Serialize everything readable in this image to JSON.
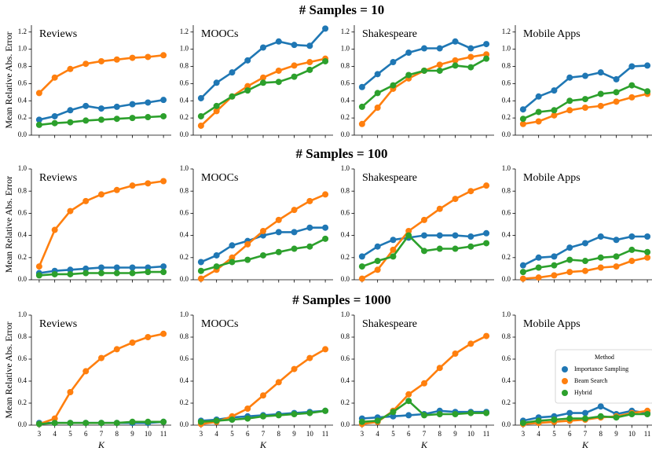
{
  "figure": {
    "row_titles": [
      "# Samples = 10",
      "# Samples = 100",
      "# Samples = 1000"
    ],
    "ylabel": "Mean Relative Abs. Error",
    "xlabel": "K"
  },
  "chart_data": [
    {
      "type": "line",
      "title": "Reviews",
      "x": [
        3,
        4,
        5,
        6,
        7,
        8,
        9,
        10,
        11
      ],
      "xlim": [
        2.5,
        11.5
      ],
      "xticks": [
        3,
        4,
        5,
        6,
        7,
        8,
        9,
        10,
        11
      ],
      "ylim": [
        0,
        1.28
      ],
      "yticks": [
        {
          "value": 0,
          "label": "0.0"
        },
        0.2,
        0.4,
        0.6,
        0.8,
        {
          "value": 1,
          "label": "1.0"
        },
        1.2
      ],
      "series": [
        {
          "name": "Importance Sampling",
          "color": "#1f77b4",
          "values": [
            0.18,
            0.22,
            0.29,
            0.34,
            0.31,
            0.33,
            0.36,
            0.38,
            0.41
          ]
        },
        {
          "name": "Beam Search",
          "color": "#ff7f0e",
          "values": [
            0.49,
            0.67,
            0.77,
            0.83,
            0.86,
            0.88,
            0.9,
            0.91,
            0.93
          ]
        },
        {
          "name": "Hybrid",
          "color": "#2ca02c",
          "values": [
            0.12,
            0.14,
            0.15,
            0.17,
            0.18,
            0.19,
            0.2,
            0.21,
            0.22
          ]
        }
      ]
    },
    {
      "type": "line",
      "title": "MOOCs",
      "x": [
        3,
        4,
        5,
        6,
        7,
        8,
        9,
        10,
        11
      ],
      "xlim": [
        2.5,
        11.5
      ],
      "xticks": [
        3,
        4,
        5,
        6,
        7,
        8,
        9,
        10,
        11
      ],
      "ylim": [
        0,
        1.28
      ],
      "yticks": [
        {
          "value": 0,
          "label": "0.0"
        },
        0.2,
        0.4,
        0.6,
        0.8,
        {
          "value": 1,
          "label": "1.0"
        },
        1.2
      ],
      "series": [
        {
          "name": "Importance Sampling",
          "color": "#1f77b4",
          "values": [
            0.43,
            0.61,
            0.73,
            0.87,
            1.02,
            1.09,
            1.05,
            1.04,
            1.24
          ]
        },
        {
          "name": "Beam Search",
          "color": "#ff7f0e",
          "values": [
            0.11,
            0.28,
            0.45,
            0.57,
            0.67,
            0.75,
            0.81,
            0.85,
            0.89
          ]
        },
        {
          "name": "Hybrid",
          "color": "#2ca02c",
          "values": [
            0.22,
            0.34,
            0.45,
            0.52,
            0.61,
            0.62,
            0.68,
            0.76,
            0.86
          ]
        }
      ]
    },
    {
      "type": "line",
      "title": "Shakespeare",
      "x": [
        3,
        4,
        5,
        6,
        7,
        8,
        9,
        10,
        11
      ],
      "xlim": [
        2.5,
        11.5
      ],
      "xticks": [
        3,
        4,
        5,
        6,
        7,
        8,
        9,
        10,
        11
      ],
      "ylim": [
        0,
        1.28
      ],
      "yticks": [
        {
          "value": 0,
          "label": "0.0"
        },
        0.2,
        0.4,
        0.6,
        0.8,
        {
          "value": 1,
          "label": "1.0"
        },
        1.2
      ],
      "series": [
        {
          "name": "Importance Sampling",
          "color": "#1f77b4",
          "values": [
            0.56,
            0.71,
            0.85,
            0.96,
            1.01,
            1.01,
            1.09,
            1.01,
            1.06
          ]
        },
        {
          "name": "Beam Search",
          "color": "#ff7f0e",
          "values": [
            0.13,
            0.32,
            0.54,
            0.66,
            0.75,
            0.82,
            0.87,
            0.91,
            0.94
          ]
        },
        {
          "name": "Hybrid",
          "color": "#2ca02c",
          "values": [
            0.33,
            0.49,
            0.58,
            0.7,
            0.75,
            0.75,
            0.81,
            0.79,
            0.89
          ]
        }
      ]
    },
    {
      "type": "line",
      "title": "Mobile Apps",
      "x": [
        3,
        4,
        5,
        6,
        7,
        8,
        9,
        10,
        11
      ],
      "xlim": [
        2.5,
        11.5
      ],
      "xticks": [
        3,
        4,
        5,
        6,
        7,
        8,
        9,
        10,
        11
      ],
      "ylim": [
        0,
        1.28
      ],
      "yticks": [
        {
          "value": 0,
          "label": "0.0"
        },
        0.2,
        0.4,
        0.6,
        0.8,
        {
          "value": 1,
          "label": "1.0"
        },
        1.2
      ],
      "series": [
        {
          "name": "Importance Sampling",
          "color": "#1f77b4",
          "values": [
            0.3,
            0.45,
            0.52,
            0.67,
            0.69,
            0.73,
            0.65,
            0.8,
            0.81
          ]
        },
        {
          "name": "Beam Search",
          "color": "#ff7f0e",
          "values": [
            0.13,
            0.16,
            0.23,
            0.29,
            0.32,
            0.34,
            0.39,
            0.44,
            0.48
          ]
        },
        {
          "name": "Hybrid",
          "color": "#2ca02c",
          "values": [
            0.19,
            0.27,
            0.29,
            0.4,
            0.42,
            0.48,
            0.5,
            0.58,
            0.51
          ]
        }
      ]
    },
    {
      "type": "line",
      "title": "Reviews",
      "x": [
        3,
        4,
        5,
        6,
        7,
        8,
        9,
        10,
        11
      ],
      "xlim": [
        2.5,
        11.5
      ],
      "xticks": [
        3,
        4,
        5,
        6,
        7,
        8,
        9,
        10,
        11
      ],
      "ylim": [
        0,
        1
      ],
      "yticks": [
        {
          "value": 0,
          "label": "0.0"
        },
        0.2,
        0.4,
        0.6,
        0.8,
        {
          "value": 1,
          "label": "1.0"
        }
      ],
      "series": [
        {
          "name": "Importance Sampling",
          "color": "#1f77b4",
          "values": [
            0.06,
            0.08,
            0.09,
            0.1,
            0.11,
            0.11,
            0.11,
            0.11,
            0.12
          ]
        },
        {
          "name": "Beam Search",
          "color": "#ff7f0e",
          "values": [
            0.12,
            0.45,
            0.62,
            0.71,
            0.77,
            0.81,
            0.85,
            0.87,
            0.89
          ]
        },
        {
          "name": "Hybrid",
          "color": "#2ca02c",
          "values": [
            0.04,
            0.05,
            0.05,
            0.06,
            0.06,
            0.06,
            0.06,
            0.07,
            0.07
          ]
        }
      ]
    },
    {
      "type": "line",
      "title": "MOOCs",
      "x": [
        3,
        4,
        5,
        6,
        7,
        8,
        9,
        10,
        11
      ],
      "xlim": [
        2.5,
        11.5
      ],
      "xticks": [
        3,
        4,
        5,
        6,
        7,
        8,
        9,
        10,
        11
      ],
      "ylim": [
        0,
        1
      ],
      "yticks": [
        {
          "value": 0,
          "label": "0.0"
        },
        0.2,
        0.4,
        0.6,
        0.8,
        {
          "value": 1,
          "label": "1.0"
        }
      ],
      "series": [
        {
          "name": "Importance Sampling",
          "color": "#1f77b4",
          "values": [
            0.16,
            0.22,
            0.31,
            0.35,
            0.4,
            0.43,
            0.43,
            0.47,
            0.47
          ]
        },
        {
          "name": "Beam Search",
          "color": "#ff7f0e",
          "values": [
            0.01,
            0.09,
            0.2,
            0.32,
            0.44,
            0.54,
            0.63,
            0.71,
            0.77
          ]
        },
        {
          "name": "Hybrid",
          "color": "#2ca02c",
          "values": [
            0.08,
            0.12,
            0.16,
            0.18,
            0.22,
            0.25,
            0.28,
            0.3,
            0.37
          ]
        }
      ]
    },
    {
      "type": "line",
      "title": "Shakespeare",
      "x": [
        3,
        4,
        5,
        6,
        7,
        8,
        9,
        10,
        11
      ],
      "xlim": [
        2.5,
        11.5
      ],
      "xticks": [
        3,
        4,
        5,
        6,
        7,
        8,
        9,
        10,
        11
      ],
      "ylim": [
        0,
        1
      ],
      "yticks": [
        {
          "value": 0,
          "label": "0.0"
        },
        0.2,
        0.4,
        0.6,
        0.8,
        {
          "value": 1,
          "label": "1.0"
        }
      ],
      "series": [
        {
          "name": "Importance Sampling",
          "color": "#1f77b4",
          "values": [
            0.21,
            0.3,
            0.36,
            0.38,
            0.4,
            0.4,
            0.4,
            0.39,
            0.42
          ]
        },
        {
          "name": "Beam Search",
          "color": "#ff7f0e",
          "values": [
            0.01,
            0.09,
            0.27,
            0.44,
            0.54,
            0.64,
            0.73,
            0.8,
            0.85
          ]
        },
        {
          "name": "Hybrid",
          "color": "#2ca02c",
          "values": [
            0.12,
            0.17,
            0.21,
            0.4,
            0.26,
            0.28,
            0.28,
            0.3,
            0.33
          ]
        }
      ]
    },
    {
      "type": "line",
      "title": "Mobile Apps",
      "x": [
        3,
        4,
        5,
        6,
        7,
        8,
        9,
        10,
        11
      ],
      "xlim": [
        2.5,
        11.5
      ],
      "xticks": [
        3,
        4,
        5,
        6,
        7,
        8,
        9,
        10,
        11
      ],
      "ylim": [
        0,
        1
      ],
      "yticks": [
        {
          "value": 0,
          "label": "0.0"
        },
        0.2,
        0.4,
        0.6,
        0.8,
        {
          "value": 1,
          "label": "1.0"
        }
      ],
      "series": [
        {
          "name": "Importance Sampling",
          "color": "#1f77b4",
          "values": [
            0.13,
            0.2,
            0.21,
            0.29,
            0.33,
            0.39,
            0.36,
            0.39,
            0.39
          ]
        },
        {
          "name": "Beam Search",
          "color": "#ff7f0e",
          "values": [
            0.01,
            0.02,
            0.04,
            0.07,
            0.08,
            0.11,
            0.12,
            0.17,
            0.2
          ]
        },
        {
          "name": "Hybrid",
          "color": "#2ca02c",
          "values": [
            0.07,
            0.11,
            0.13,
            0.18,
            0.17,
            0.2,
            0.21,
            0.27,
            0.25
          ]
        }
      ]
    },
    {
      "type": "line",
      "title": "Reviews",
      "x": [
        3,
        4,
        5,
        6,
        7,
        8,
        9,
        10,
        11
      ],
      "xlim": [
        2.5,
        11.5
      ],
      "xticks": [
        3,
        4,
        5,
        6,
        7,
        8,
        9,
        10,
        11
      ],
      "ylim": [
        0,
        1
      ],
      "yticks": [
        {
          "value": 0,
          "label": "0.0"
        },
        0.2,
        0.4,
        0.6,
        0.8,
        {
          "value": 1,
          "label": "1.0"
        }
      ],
      "series": [
        {
          "name": "Importance Sampling",
          "color": "#1f77b4",
          "values": [
            0.02,
            0.02,
            0.02,
            0.02,
            0.02,
            0.02,
            0.02,
            0.02,
            0.03
          ]
        },
        {
          "name": "Beam Search",
          "color": "#ff7f0e",
          "values": [
            0.01,
            0.06,
            0.3,
            0.49,
            0.61,
            0.69,
            0.75,
            0.8,
            0.83
          ]
        },
        {
          "name": "Hybrid",
          "color": "#2ca02c",
          "values": [
            0.01,
            0.02,
            0.02,
            0.02,
            0.02,
            0.02,
            0.03,
            0.03,
            0.03
          ]
        }
      ]
    },
    {
      "type": "line",
      "title": "MOOCs",
      "x": [
        3,
        4,
        5,
        6,
        7,
        8,
        9,
        10,
        11
      ],
      "xlim": [
        2.5,
        11.5
      ],
      "xticks": [
        3,
        4,
        5,
        6,
        7,
        8,
        9,
        10,
        11
      ],
      "ylim": [
        0,
        1
      ],
      "yticks": [
        {
          "value": 0,
          "label": "0.0"
        },
        0.2,
        0.4,
        0.6,
        0.8,
        {
          "value": 1,
          "label": "1.0"
        }
      ],
      "series": [
        {
          "name": "Importance Sampling",
          "color": "#1f77b4",
          "values": [
            0.04,
            0.05,
            0.07,
            0.08,
            0.09,
            0.1,
            0.11,
            0.12,
            0.13
          ]
        },
        {
          "name": "Beam Search",
          "color": "#ff7f0e",
          "values": [
            0.01,
            0.03,
            0.08,
            0.15,
            0.27,
            0.39,
            0.51,
            0.61,
            0.69
          ]
        },
        {
          "name": "Hybrid",
          "color": "#2ca02c",
          "values": [
            0.03,
            0.04,
            0.05,
            0.06,
            0.08,
            0.09,
            0.1,
            0.11,
            0.13
          ]
        }
      ]
    },
    {
      "type": "line",
      "title": "Shakespeare",
      "x": [
        3,
        4,
        5,
        6,
        7,
        8,
        9,
        10,
        11
      ],
      "xlim": [
        2.5,
        11.5
      ],
      "xticks": [
        3,
        4,
        5,
        6,
        7,
        8,
        9,
        10,
        11
      ],
      "ylim": [
        0,
        1
      ],
      "yticks": [
        {
          "value": 0,
          "label": "0.0"
        },
        0.2,
        0.4,
        0.6,
        0.8,
        {
          "value": 1,
          "label": "1.0"
        }
      ],
      "series": [
        {
          "name": "Importance Sampling",
          "color": "#1f77b4",
          "values": [
            0.06,
            0.07,
            0.08,
            0.09,
            0.1,
            0.13,
            0.12,
            0.12,
            0.12
          ]
        },
        {
          "name": "Beam Search",
          "color": "#ff7f0e",
          "values": [
            0.01,
            0.03,
            0.13,
            0.28,
            0.38,
            0.52,
            0.65,
            0.74,
            0.81
          ]
        },
        {
          "name": "Hybrid",
          "color": "#2ca02c",
          "values": [
            0.03,
            0.04,
            0.12,
            0.22,
            0.09,
            0.1,
            0.1,
            0.11,
            0.11
          ]
        }
      ]
    },
    {
      "type": "line",
      "title": "Mobile Apps",
      "x": [
        3,
        4,
        5,
        6,
        7,
        8,
        9,
        10,
        11
      ],
      "xlim": [
        2.5,
        11.5
      ],
      "xticks": [
        3,
        4,
        5,
        6,
        7,
        8,
        9,
        10,
        11
      ],
      "ylim": [
        0,
        1
      ],
      "yticks": [
        {
          "value": 0,
          "label": "0.0"
        },
        0.2,
        0.4,
        0.6,
        0.8,
        {
          "value": 1,
          "label": "1.0"
        }
      ],
      "legend": "center right",
      "legend_title": "Method",
      "series": [
        {
          "name": "Importance Sampling",
          "color": "#1f77b4",
          "values": [
            0.04,
            0.07,
            0.08,
            0.11,
            0.11,
            0.17,
            0.1,
            0.13,
            0.11
          ]
        },
        {
          "name": "Beam Search",
          "color": "#ff7f0e",
          "values": [
            0.01,
            0.02,
            0.03,
            0.04,
            0.05,
            0.07,
            0.08,
            0.11,
            0.13
          ]
        },
        {
          "name": "Hybrid",
          "color": "#2ca02c",
          "values": [
            0.02,
            0.04,
            0.05,
            0.06,
            0.06,
            0.08,
            0.07,
            0.1,
            0.1
          ]
        }
      ]
    }
  ]
}
